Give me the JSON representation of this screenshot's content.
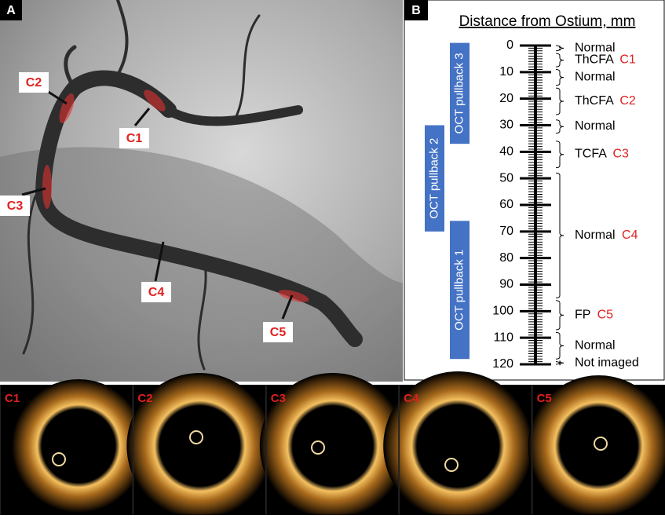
{
  "panel_a": {
    "label": "A",
    "markers": [
      "C1",
      "C2",
      "C3",
      "C4",
      "C5"
    ]
  },
  "panel_b": {
    "label": "B",
    "title": "Distance from Ostium, mm",
    "lim": [
      0,
      120
    ],
    "ticks": [
      0,
      10,
      20,
      30,
      40,
      50,
      60,
      70,
      80,
      90,
      100,
      110,
      120
    ],
    "segments": [
      {
        "label": "Normal",
        "from": 0,
        "to": 2
      },
      {
        "label": "ThCFA",
        "code": "C1",
        "from": 3,
        "to": 8
      },
      {
        "label": "Normal",
        "from": 9,
        "to": 15
      },
      {
        "label": "ThCFA",
        "code": "C2",
        "from": 16,
        "to": 26
      },
      {
        "label": "Normal",
        "from": 28,
        "to": 33
      },
      {
        "label": "TCFA",
        "code": "C3",
        "from": 36,
        "to": 46
      },
      {
        "label": "Normal",
        "code": "C4",
        "from": 48,
        "to": 95
      },
      {
        "label": "FP",
        "code": "C5",
        "from": 96,
        "to": 107
      },
      {
        "label": "Normal",
        "from": 108,
        "to": 118
      },
      {
        "label": "Not imaged",
        "from": 119,
        "to": 120
      }
    ],
    "pullbacks": [
      {
        "label": "OCT pullback 3",
        "from": -1,
        "to": 37
      },
      {
        "label": "OCT pullback 2",
        "from": 30,
        "to": 70
      },
      {
        "label": "OCT pullback 1",
        "from": 66,
        "to": 118
      }
    ]
  },
  "oct_images": {
    "labels": [
      "C1",
      "C2",
      "C3",
      "C4",
      "C5"
    ]
  }
}
